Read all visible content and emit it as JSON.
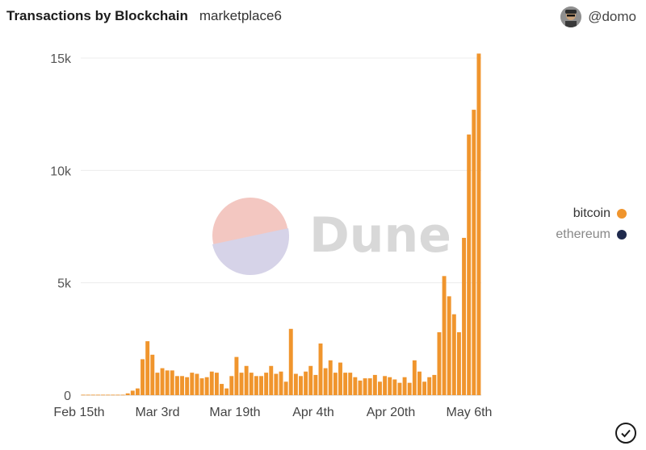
{
  "header": {
    "title": "Transactions by Blockchain",
    "subtitle": "marketplace6"
  },
  "user": {
    "handle": "@domo",
    "avatar_icon": "user-avatar-icon"
  },
  "watermark": {
    "text": "Dune",
    "icon": "dune-logo-icon"
  },
  "legend": [
    {
      "label": "bitcoin",
      "color": "#f0952d"
    },
    {
      "label": "ethereum",
      "color": "#1f2a4d"
    }
  ],
  "footer": {
    "icon": "check-circle-icon"
  },
  "chart_data": {
    "type": "bar",
    "x_tick_labels": [
      "Feb 15th",
      "Mar 3rd",
      "Mar 19th",
      "Apr 4th",
      "Apr 20th",
      "May 6th"
    ],
    "y_tick_labels": [
      "0",
      "5k",
      "10k",
      "15k"
    ],
    "ylim": [
      0,
      15000
    ],
    "grid": true,
    "legend_position": "right",
    "series": [
      {
        "name": "bitcoin",
        "color": "#f0952d",
        "values": [
          20,
          20,
          20,
          20,
          20,
          20,
          20,
          20,
          20,
          80,
          200,
          300,
          1600,
          2400,
          1800,
          1000,
          1200,
          1100,
          1100,
          850,
          850,
          800,
          1000,
          950,
          750,
          800,
          1050,
          1000,
          500,
          300,
          850,
          1700,
          1000,
          1300,
          1000,
          850,
          850,
          1000,
          1300,
          950,
          1050,
          600,
          2950,
          950,
          850,
          1050,
          1300,
          900,
          2300,
          1200,
          1550,
          1000,
          1450,
          1000,
          1000,
          800,
          650,
          750,
          750,
          900,
          600,
          850,
          800,
          700,
          550,
          800,
          550,
          1550,
          1050,
          600,
          800,
          900,
          2800,
          5300,
          4400,
          3600,
          2800,
          7000,
          11600,
          12700,
          15200
        ]
      },
      {
        "name": "ethereum",
        "color": "#1f2a4d",
        "values": []
      }
    ]
  }
}
